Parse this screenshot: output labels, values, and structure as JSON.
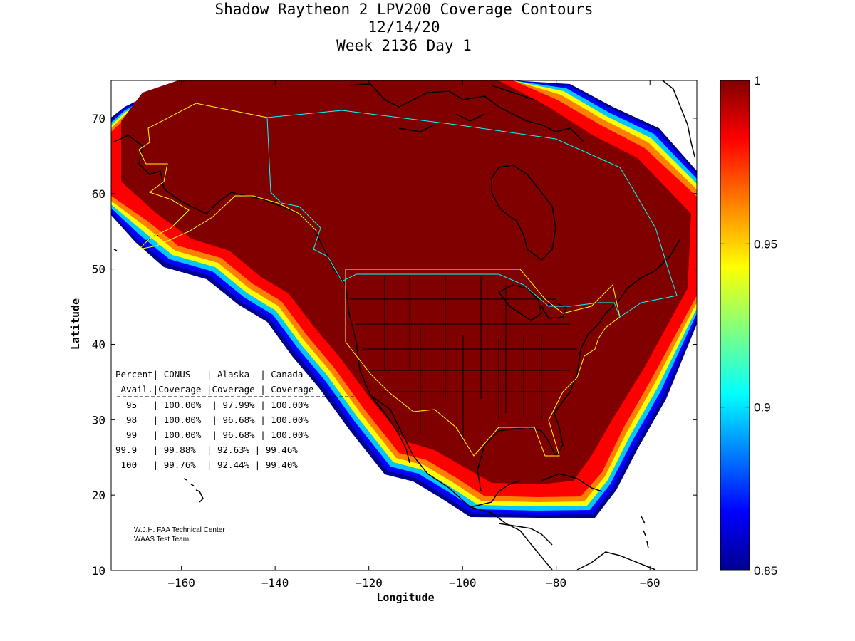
{
  "title": {
    "line1": "Shadow Raytheon 2 LPV200 Coverage Contours",
    "line2": "12/14/20",
    "line3": "Week 2136 Day 1"
  },
  "chart_data": {
    "type": "heatmap",
    "title": "Shadow Raytheon 2 LPV200 Coverage Contours",
    "xlabel": "Longitude",
    "ylabel": "Latitude",
    "xlim": [
      -175,
      -50
    ],
    "ylim": [
      10,
      75
    ],
    "xticks": [
      -160,
      -140,
      -120,
      -100,
      -80,
      -60
    ],
    "yticks": [
      10,
      20,
      30,
      40,
      50,
      60,
      70
    ],
    "colorbar": {
      "min": 0.85,
      "max": 1,
      "ticks": [
        1,
        0.95,
        0.9,
        0.85
      ],
      "tick_labels": [
        "1",
        "0.95",
        "0.9",
        "0.85"
      ]
    },
    "table": {
      "headers": [
        "Percent| CONUS   | Alaska  | Canada",
        " Avail.|Coverage |Coverage | Coverage"
      ],
      "rows": [
        "  95   | 100.00%  | 97.99% | 100.00%",
        "  98   | 100.00%  | 96.68% | 100.00%",
        "  99   | 100.00%  | 96.68% | 100.00%",
        "99.9   | 99.88%  | 92.63% | 99.46%",
        " 100   | 99.76%  | 92.44% | 99.40%"
      ]
    },
    "credit": [
      "W.J.H. FAA Technical Center",
      "WAAS Test Team"
    ]
  },
  "colors": {
    "max": "#800000",
    "high": "#ff0000",
    "mid_high": "#ff8000",
    "mid": "#ffff00",
    "mid_low": "#00ffff",
    "low": "#0000ff",
    "min": "#00008f",
    "alaska_boundary": "#ffff00",
    "conus_boundary": "#ffff00",
    "canada_boundary": "#00ffff"
  }
}
